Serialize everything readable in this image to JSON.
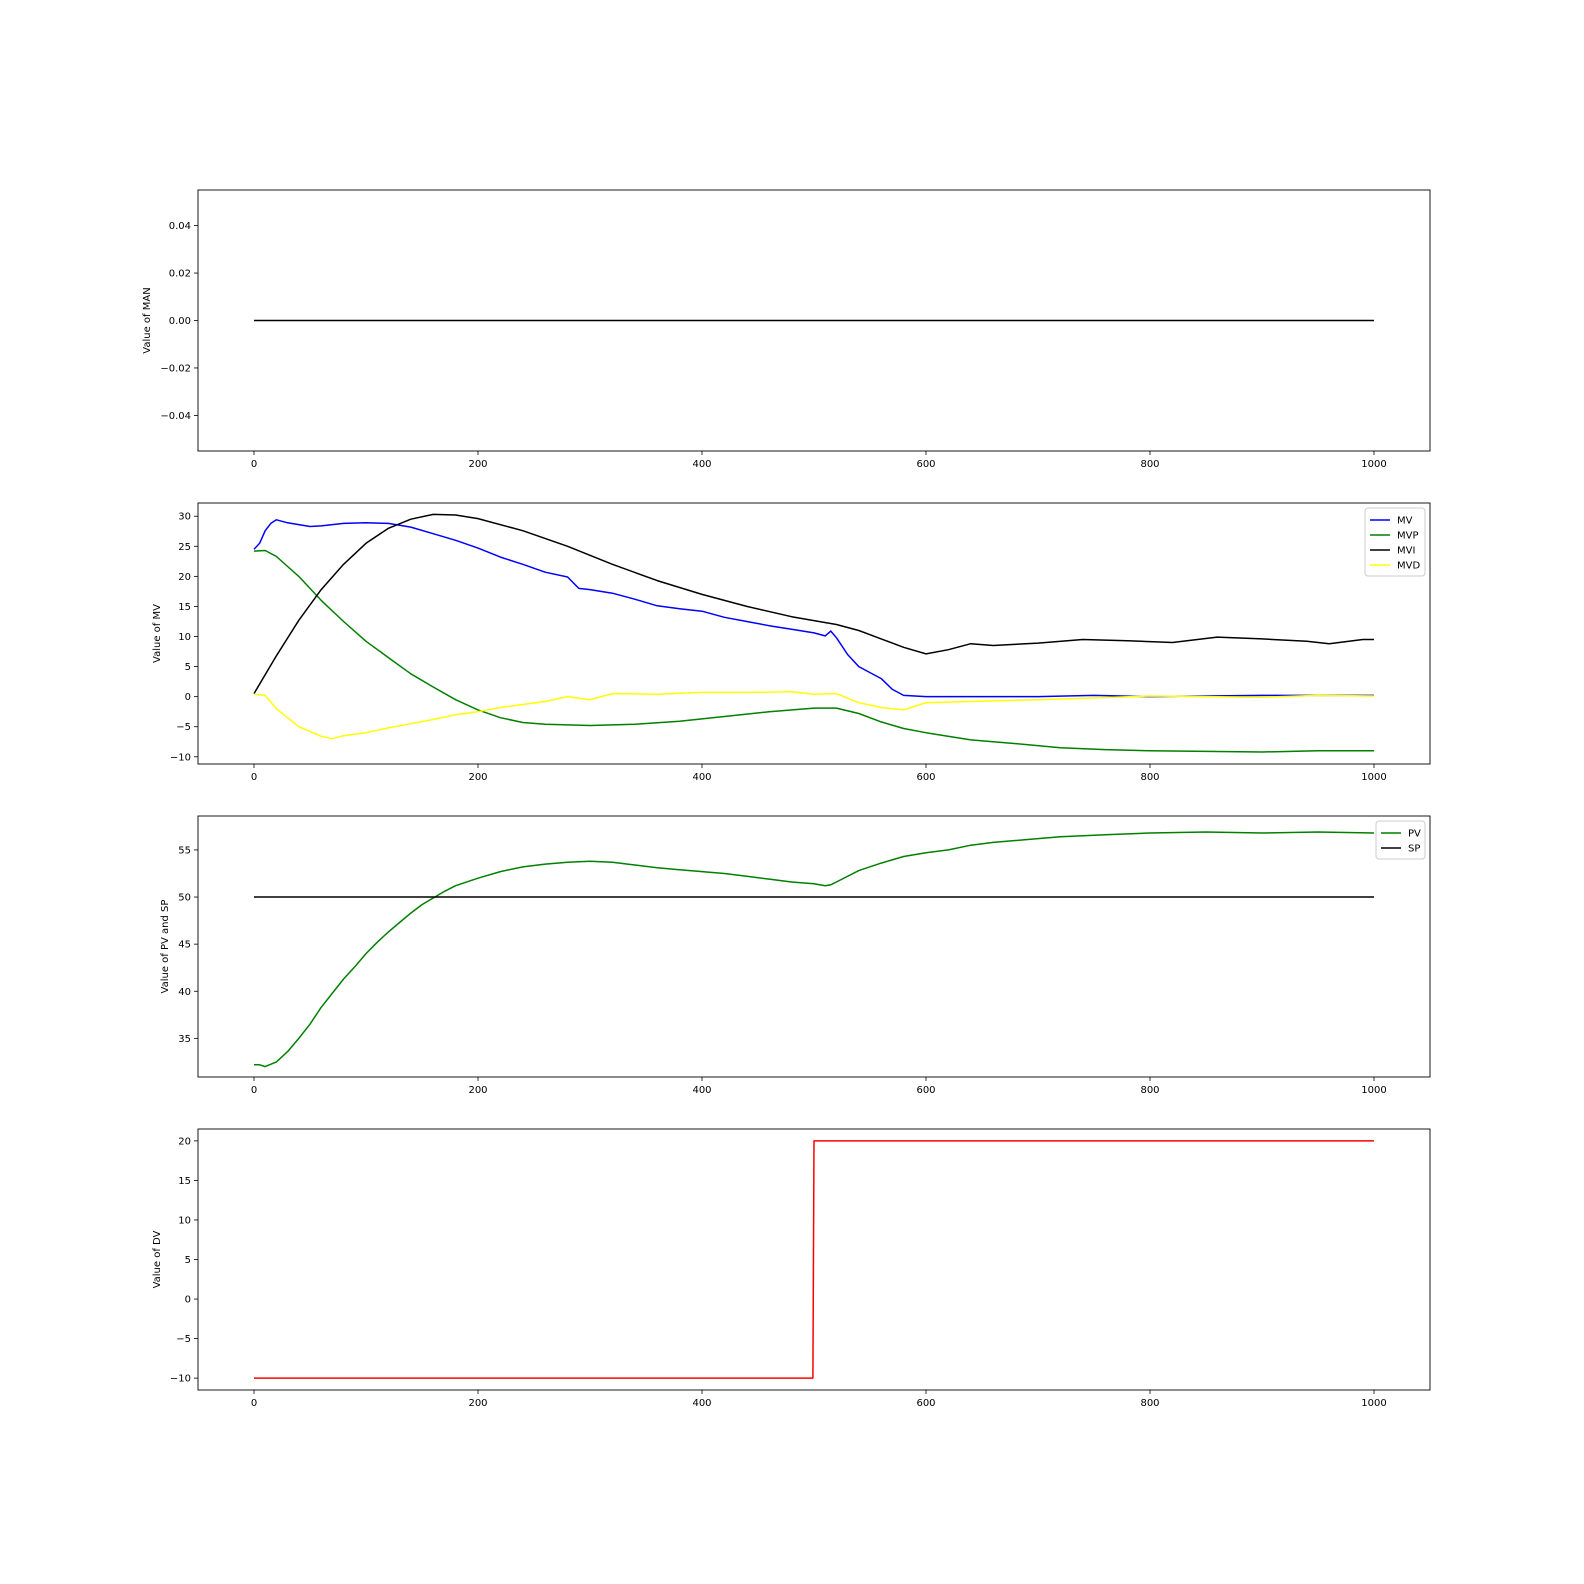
{
  "chart_data": [
    {
      "type": "line",
      "ylabel": "Value of MAN",
      "xlim": [
        -50,
        1050
      ],
      "ylim": [
        -0.055,
        0.055
      ],
      "xticks": [
        0,
        200,
        400,
        600,
        800,
        1000
      ],
      "yticks": [
        -0.04,
        -0.02,
        0.0,
        0.02,
        0.04
      ],
      "ytick_labels": [
        "−0.04",
        "−0.02",
        "0.00",
        "0.02",
        "0.04"
      ],
      "legend": null,
      "series": [
        {
          "color": "#000000",
          "points": [
            [
              0,
              0
            ],
            [
              1000,
              0
            ]
          ]
        }
      ]
    },
    {
      "type": "line",
      "ylabel": "Value of MV",
      "xlim": [
        -50,
        1050
      ],
      "ylim": [
        -11.2,
        32.2
      ],
      "xticks": [
        0,
        200,
        400,
        600,
        800,
        1000
      ],
      "yticks": [
        -10,
        -5,
        0,
        5,
        10,
        15,
        20,
        25,
        30
      ],
      "ytick_labels": [
        "−10",
        "−5",
        "0",
        "5",
        "10",
        "15",
        "20",
        "25",
        "30"
      ],
      "legend": "top-right",
      "series": [
        {
          "name": "MV",
          "color": "#0000ff",
          "points": [
            [
              0,
              24.5
            ],
            [
              5,
              25.5
            ],
            [
              10,
              27.6
            ],
            [
              15,
              28.8
            ],
            [
              20,
              29.4
            ],
            [
              30,
              28.9
            ],
            [
              40,
              28.6
            ],
            [
              50,
              28.3
            ],
            [
              60,
              28.4
            ],
            [
              80,
              28.8
            ],
            [
              100,
              28.9
            ],
            [
              120,
              28.8
            ],
            [
              140,
              28.2
            ],
            [
              160,
              27.1
            ],
            [
              180,
              26.0
            ],
            [
              200,
              24.7
            ],
            [
              220,
              23.2
            ],
            [
              240,
              22.0
            ],
            [
              260,
              20.7
            ],
            [
              280,
              19.9
            ],
            [
              290,
              18.0
            ],
            [
              300,
              17.8
            ],
            [
              320,
              17.2
            ],
            [
              340,
              16.2
            ],
            [
              360,
              15.1
            ],
            [
              380,
              14.6
            ],
            [
              400,
              14.2
            ],
            [
              420,
              13.2
            ],
            [
              440,
              12.5
            ],
            [
              460,
              11.8
            ],
            [
              480,
              11.2
            ],
            [
              500,
              10.6
            ],
            [
              510,
              10.1
            ],
            [
              515,
              10.9
            ],
            [
              520,
              9.8
            ],
            [
              530,
              7.0
            ],
            [
              540,
              5.0
            ],
            [
              550,
              4.0
            ],
            [
              560,
              3.0
            ],
            [
              570,
              1.2
            ],
            [
              580,
              0.2
            ],
            [
              600,
              0.0
            ],
            [
              700,
              0.0
            ],
            [
              750,
              0.2
            ],
            [
              800,
              0.0
            ],
            [
              900,
              0.2
            ],
            [
              1000,
              0.2
            ]
          ]
        },
        {
          "name": "MVP",
          "color": "#008000",
          "points": [
            [
              0,
              24.2
            ],
            [
              10,
              24.3
            ],
            [
              20,
              23.3
            ],
            [
              40,
              20.0
            ],
            [
              60,
              16.0
            ],
            [
              80,
              12.5
            ],
            [
              100,
              9.2
            ],
            [
              120,
              6.5
            ],
            [
              140,
              3.8
            ],
            [
              160,
              1.6
            ],
            [
              180,
              -0.5
            ],
            [
              200,
              -2.2
            ],
            [
              220,
              -3.5
            ],
            [
              240,
              -4.3
            ],
            [
              260,
              -4.6
            ],
            [
              300,
              -4.8
            ],
            [
              340,
              -4.6
            ],
            [
              380,
              -4.1
            ],
            [
              420,
              -3.3
            ],
            [
              460,
              -2.5
            ],
            [
              500,
              -1.9
            ],
            [
              520,
              -1.9
            ],
            [
              540,
              -2.8
            ],
            [
              560,
              -4.2
            ],
            [
              580,
              -5.3
            ],
            [
              600,
              -6.0
            ],
            [
              640,
              -7.2
            ],
            [
              680,
              -7.8
            ],
            [
              720,
              -8.5
            ],
            [
              760,
              -8.8
            ],
            [
              800,
              -9.0
            ],
            [
              850,
              -9.1
            ],
            [
              900,
              -9.2
            ],
            [
              950,
              -9.0
            ],
            [
              1000,
              -9.0
            ]
          ]
        },
        {
          "name": "MVI",
          "color": "#000000",
          "points": [
            [
              0,
              0.5
            ],
            [
              20,
              6.8
            ],
            [
              40,
              12.7
            ],
            [
              60,
              17.8
            ],
            [
              80,
              22.0
            ],
            [
              100,
              25.5
            ],
            [
              120,
              28.0
            ],
            [
              140,
              29.5
            ],
            [
              160,
              30.3
            ],
            [
              180,
              30.2
            ],
            [
              200,
              29.6
            ],
            [
              240,
              27.6
            ],
            [
              280,
              25.0
            ],
            [
              320,
              22.0
            ],
            [
              360,
              19.3
            ],
            [
              400,
              17.0
            ],
            [
              440,
              15.0
            ],
            [
              480,
              13.3
            ],
            [
              520,
              12.0
            ],
            [
              540,
              11.0
            ],
            [
              560,
              9.6
            ],
            [
              580,
              8.2
            ],
            [
              600,
              7.1
            ],
            [
              620,
              7.8
            ],
            [
              640,
              8.8
            ],
            [
              660,
              8.5
            ],
            [
              700,
              8.9
            ],
            [
              740,
              9.5
            ],
            [
              780,
              9.3
            ],
            [
              820,
              9.0
            ],
            [
              860,
              9.9
            ],
            [
              900,
              9.6
            ],
            [
              940,
              9.2
            ],
            [
              960,
              8.8
            ],
            [
              990,
              9.5
            ],
            [
              1000,
              9.5
            ]
          ]
        },
        {
          "name": "MVD",
          "color": "#ffff00",
          "points": [
            [
              0,
              0.4
            ],
            [
              10,
              0.2
            ],
            [
              20,
              -2.0
            ],
            [
              40,
              -5.0
            ],
            [
              60,
              -6.6
            ],
            [
              70,
              -7.0
            ],
            [
              80,
              -6.5
            ],
            [
              100,
              -6.0
            ],
            [
              120,
              -5.2
            ],
            [
              140,
              -4.5
            ],
            [
              160,
              -3.8
            ],
            [
              180,
              -3.0
            ],
            [
              200,
              -2.5
            ],
            [
              220,
              -1.8
            ],
            [
              240,
              -1.3
            ],
            [
              260,
              -0.8
            ],
            [
              280,
              0.0
            ],
            [
              300,
              -0.5
            ],
            [
              320,
              0.5
            ],
            [
              360,
              0.4
            ],
            [
              400,
              0.7
            ],
            [
              440,
              0.7
            ],
            [
              480,
              0.8
            ],
            [
              500,
              0.4
            ],
            [
              520,
              0.5
            ],
            [
              540,
              -1.0
            ],
            [
              560,
              -1.8
            ],
            [
              580,
              -2.2
            ],
            [
              600,
              -1.0
            ],
            [
              640,
              -0.8
            ],
            [
              700,
              -0.5
            ],
            [
              800,
              0.1
            ],
            [
              900,
              -0.1
            ],
            [
              950,
              0.2
            ],
            [
              1000,
              0.1
            ]
          ]
        }
      ]
    },
    {
      "type": "line",
      "ylabel": "Value of PV and SP",
      "xlim": [
        -50,
        1050
      ],
      "ylim": [
        30.9,
        58.6
      ],
      "xticks": [
        0,
        200,
        400,
        600,
        800,
        1000
      ],
      "yticks": [
        35,
        40,
        45,
        50,
        55
      ],
      "ytick_labels": [
        "35",
        "40",
        "45",
        "50",
        "55"
      ],
      "legend": "top-right",
      "series": [
        {
          "name": "PV",
          "color": "#008000",
          "points": [
            [
              0,
              32.2
            ],
            [
              5,
              32.2
            ],
            [
              10,
              32.0
            ],
            [
              20,
              32.5
            ],
            [
              30,
              33.6
            ],
            [
              40,
              35.0
            ],
            [
              50,
              36.5
            ],
            [
              60,
              38.3
            ],
            [
              70,
              39.8
            ],
            [
              80,
              41.3
            ],
            [
              90,
              42.6
            ],
            [
              100,
              44.0
            ],
            [
              110,
              45.2
            ],
            [
              120,
              46.3
            ],
            [
              130,
              47.3
            ],
            [
              140,
              48.3
            ],
            [
              150,
              49.2
            ],
            [
              160,
              49.9
            ],
            [
              170,
              50.6
            ],
            [
              180,
              51.2
            ],
            [
              200,
              52.0
            ],
            [
              220,
              52.7
            ],
            [
              240,
              53.2
            ],
            [
              260,
              53.5
            ],
            [
              280,
              53.7
            ],
            [
              300,
              53.8
            ],
            [
              320,
              53.7
            ],
            [
              340,
              53.4
            ],
            [
              360,
              53.1
            ],
            [
              380,
              52.9
            ],
            [
              400,
              52.7
            ],
            [
              420,
              52.5
            ],
            [
              440,
              52.2
            ],
            [
              460,
              51.9
            ],
            [
              480,
              51.6
            ],
            [
              500,
              51.4
            ],
            [
              510,
              51.2
            ],
            [
              515,
              51.3
            ],
            [
              520,
              51.6
            ],
            [
              540,
              52.8
            ],
            [
              560,
              53.6
            ],
            [
              580,
              54.3
            ],
            [
              600,
              54.7
            ],
            [
              620,
              55.0
            ],
            [
              640,
              55.5
            ],
            [
              660,
              55.8
            ],
            [
              680,
              56.0
            ],
            [
              700,
              56.2
            ],
            [
              720,
              56.4
            ],
            [
              760,
              56.6
            ],
            [
              800,
              56.8
            ],
            [
              850,
              56.9
            ],
            [
              900,
              56.8
            ],
            [
              950,
              56.9
            ],
            [
              1000,
              56.8
            ]
          ]
        },
        {
          "name": "SP",
          "color": "#000000",
          "points": [
            [
              0,
              50
            ],
            [
              1000,
              50
            ]
          ]
        }
      ]
    },
    {
      "type": "line",
      "ylabel": "Value of DV",
      "xlim": [
        -50,
        1050
      ],
      "ylim": [
        -11.5,
        21.5
      ],
      "xticks": [
        0,
        200,
        400,
        600,
        800,
        1000
      ],
      "yticks": [
        -10,
        -5,
        0,
        5,
        10,
        15,
        20
      ],
      "ytick_labels": [
        "−10",
        "−5",
        "0",
        "5",
        "10",
        "15",
        "20"
      ],
      "legend": null,
      "series": [
        {
          "color": "#ff0000",
          "points": [
            [
              0,
              -10
            ],
            [
              499,
              -10
            ],
            [
              500,
              20
            ],
            [
              1000,
              20
            ]
          ]
        }
      ]
    }
  ]
}
